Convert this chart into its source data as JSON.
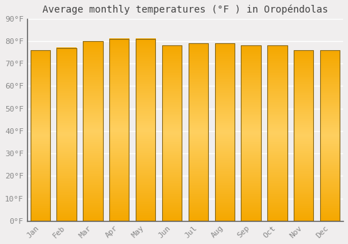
{
  "title": "Average monthly temperatures (°F ) in Oropéndolas",
  "months": [
    "Jan",
    "Feb",
    "Mar",
    "Apr",
    "May",
    "Jun",
    "Jul",
    "Aug",
    "Sep",
    "Oct",
    "Nov",
    "Dec"
  ],
  "values": [
    76,
    77,
    80,
    81,
    81,
    78,
    79,
    79,
    78,
    78,
    76,
    76
  ],
  "ylim": [
    0,
    90
  ],
  "yticks": [
    0,
    10,
    20,
    30,
    40,
    50,
    60,
    70,
    80,
    90
  ],
  "ytick_labels": [
    "0°F",
    "10°F",
    "20°F",
    "30°F",
    "40°F",
    "50°F",
    "60°F",
    "70°F",
    "80°F",
    "90°F"
  ],
  "background_color": "#f0eeee",
  "bar_color_bright": "#FFD060",
  "bar_color_dark": "#F5A800",
  "bar_edge_color": "#8B6914",
  "grid_color": "#ffffff",
  "title_fontsize": 10,
  "tick_fontsize": 8,
  "bar_width": 0.75
}
